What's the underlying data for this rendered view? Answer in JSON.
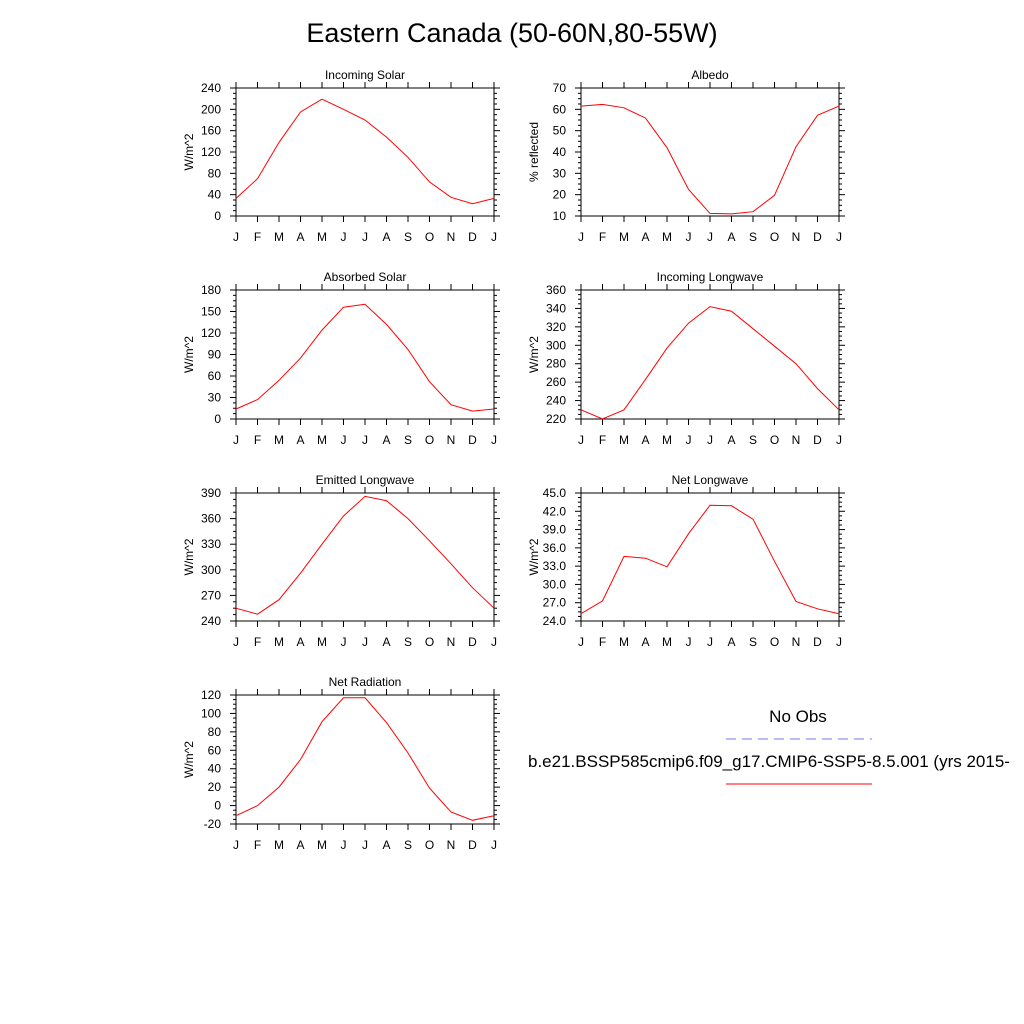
{
  "title": "Eastern Canada (50-60N,80-55W)",
  "legend": {
    "obs_label": "No Obs",
    "model_label": "b.e21.BSSP585cmip6.f09_g17.CMIP6-SSP5-8.5.001 (yrs 2015-",
    "obs_color": "#7777ee",
    "model_color": "#ff0000"
  },
  "chart_data": [
    {
      "type": "line",
      "title": "Incoming Solar",
      "ylabel": "W/m^2",
      "categories": [
        "J",
        "F",
        "M",
        "A",
        "M",
        "J",
        "J",
        "A",
        "S",
        "O",
        "N",
        "D",
        "J"
      ],
      "yticks": [
        "0",
        "40",
        "80",
        "120",
        "160",
        "200",
        "240"
      ],
      "ylim": [
        0,
        240
      ],
      "grid": false,
      "series": [
        {
          "values": [
            33,
            70,
            138,
            195,
            219,
            200,
            180,
            148,
            110,
            64,
            35,
            23,
            33
          ]
        }
      ]
    },
    {
      "type": "line",
      "title": "Albedo",
      "ylabel": "% reflected",
      "categories": [
        "J",
        "F",
        "M",
        "A",
        "M",
        "J",
        "J",
        "A",
        "S",
        "O",
        "N",
        "D",
        "J"
      ],
      "yticks": [
        "10",
        "20",
        "30",
        "40",
        "50",
        "60",
        "70"
      ],
      "ylim": [
        10,
        70
      ],
      "grid": false,
      "series": [
        {
          "values": [
            61.5,
            62.3,
            60.7,
            55.9,
            42,
            22.5,
            11.2,
            11,
            12,
            19.7,
            42.5,
            57.2,
            61.5
          ]
        }
      ]
    },
    {
      "type": "line",
      "title": "Absorbed Solar",
      "ylabel": "W/m^2",
      "categories": [
        "J",
        "F",
        "M",
        "A",
        "M",
        "J",
        "J",
        "A",
        "S",
        "O",
        "N",
        "D",
        "J"
      ],
      "yticks": [
        "0",
        "30",
        "60",
        "90",
        "120",
        "150",
        "180"
      ],
      "ylim": [
        0,
        180
      ],
      "grid": false,
      "series": [
        {
          "values": [
            14,
            27,
            54,
            85,
            124,
            156,
            160,
            132,
            97,
            52,
            20,
            11,
            14
          ]
        }
      ]
    },
    {
      "type": "line",
      "title": "Incoming Longwave",
      "ylabel": "W/m^2",
      "categories": [
        "J",
        "F",
        "M",
        "A",
        "M",
        "J",
        "J",
        "A",
        "S",
        "O",
        "N",
        "D",
        "J"
      ],
      "yticks": [
        "220",
        "240",
        "260",
        "280",
        "300",
        "320",
        "340",
        "360"
      ],
      "ylim": [
        220,
        360
      ],
      "grid": false,
      "series": [
        {
          "values": [
            230,
            220,
            230,
            263,
            297,
            324,
            342,
            337,
            318,
            299,
            280,
            253,
            230
          ]
        }
      ]
    },
    {
      "type": "line",
      "title": "Emitted Longwave",
      "ylabel": "W/m^2",
      "categories": [
        "J",
        "F",
        "M",
        "A",
        "M",
        "J",
        "J",
        "A",
        "S",
        "O",
        "N",
        "D",
        "J"
      ],
      "yticks": [
        "240",
        "270",
        "300",
        "330",
        "360",
        "390"
      ],
      "ylim": [
        240,
        390
      ],
      "grid": false,
      "series": [
        {
          "values": [
            255,
            248,
            265,
            296,
            330,
            363,
            386,
            381,
            360,
            334,
            307,
            279,
            255
          ]
        }
      ]
    },
    {
      "type": "line",
      "title": "Net Longwave",
      "ylabel": "W/m^2",
      "categories": [
        "J",
        "F",
        "M",
        "A",
        "M",
        "J",
        "J",
        "A",
        "S",
        "O",
        "N",
        "D",
        "J"
      ],
      "yticks": [
        "24.0",
        "27.0",
        "30.0",
        "33.0",
        "36.0",
        "39.0",
        "42.0",
        "45.0"
      ],
      "ylim": [
        24,
        45
      ],
      "grid": false,
      "series": [
        {
          "values": [
            25.2,
            27.3,
            34.6,
            34.3,
            32.9,
            38.3,
            43,
            42.9,
            40.7,
            33.8,
            27.2,
            26,
            25.2
          ]
        }
      ]
    },
    {
      "type": "line",
      "title": "Net Radiation",
      "ylabel": "W/m^2",
      "categories": [
        "J",
        "F",
        "M",
        "A",
        "M",
        "J",
        "J",
        "A",
        "S",
        "O",
        "N",
        "D",
        "J"
      ],
      "yticks": [
        "-20",
        "0",
        "20",
        "40",
        "60",
        "80",
        "100",
        "120"
      ],
      "ylim": [
        -20,
        120
      ],
      "grid": false,
      "series": [
        {
          "values": [
            -11,
            0,
            20,
            50,
            91,
            117,
            117,
            90,
            57,
            19,
            -7,
            -16,
            -11
          ]
        }
      ]
    }
  ]
}
